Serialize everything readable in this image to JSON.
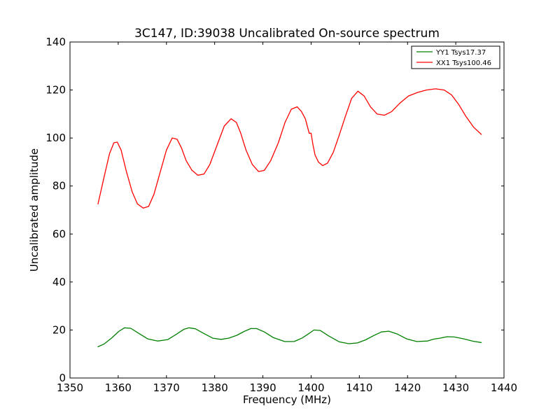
{
  "chart_data": {
    "type": "line",
    "title": "3C147, ID:39038 Uncalibrated On-source spectrum",
    "xlabel": "Frequency (MHz)",
    "ylabel": "Uncalibrated amplitude",
    "xlim": [
      1350,
      1440
    ],
    "ylim": [
      0,
      140
    ],
    "xticks": [
      1350,
      1360,
      1370,
      1380,
      1390,
      1400,
      1410,
      1420,
      1430,
      1440
    ],
    "yticks": [
      0,
      20,
      40,
      60,
      80,
      100,
      120,
      140
    ],
    "grid": false,
    "legend_position": "top-right",
    "series": [
      {
        "name": "YY1 Tsys17.37",
        "color": "#008000",
        "x": [
          1355.8,
          1357.1,
          1358.6,
          1360.1,
          1361.3,
          1362.6,
          1364.2,
          1366.1,
          1368.2,
          1370.3,
          1372.2,
          1373.6,
          1374.7,
          1376.0,
          1377.7,
          1379.6,
          1381.3,
          1382.9,
          1384.6,
          1386.1,
          1387.5,
          1388.7,
          1390.3,
          1392.2,
          1394.5,
          1396.5,
          1398.2,
          1399.6,
          1400.6,
          1401.9,
          1403.6,
          1405.8,
          1407.8,
          1409.6,
          1411.3,
          1413.0,
          1414.6,
          1416.1,
          1417.9,
          1419.8,
          1421.9,
          1424.1,
          1425.4,
          1426.7,
          1428.2,
          1429.7,
          1431.7,
          1433.6,
          1435.3
        ],
        "y": [
          13.0,
          14.2,
          16.6,
          19.4,
          20.9,
          20.7,
          18.7,
          16.3,
          15.4,
          16.0,
          18.4,
          20.3,
          20.9,
          20.5,
          18.6,
          16.6,
          16.1,
          16.6,
          17.8,
          19.4,
          20.6,
          20.6,
          19.2,
          16.8,
          15.2,
          15.2,
          16.7,
          18.6,
          20.0,
          19.8,
          17.6,
          15.1,
          14.3,
          14.6,
          15.9,
          17.7,
          19.2,
          19.5,
          18.3,
          16.3,
          15.2,
          15.4,
          16.2,
          16.6,
          17.2,
          17.1,
          16.3,
          15.3,
          14.8
        ]
      },
      {
        "name": "XX1 Tsys100.46",
        "color": "#ff0000",
        "x": [
          1355.8,
          1357.1,
          1358.2,
          1359.1,
          1359.8,
          1360.6,
          1361.7,
          1362.9,
          1364.0,
          1365.2,
          1366.3,
          1367.4,
          1368.6,
          1370.0,
          1371.2,
          1372.2,
          1373.1,
          1374.1,
          1375.3,
          1376.5,
          1377.8,
          1379.0,
          1380.5,
          1382.0,
          1383.4,
          1384.5,
          1385.4,
          1386.5,
          1387.8,
          1389.1,
          1390.3,
          1391.6,
          1393.2,
          1394.6,
          1395.9,
          1397.1,
          1398.0,
          1398.8,
          1399.6,
          1400.0,
          1400.4,
          1400.8,
          1401.5,
          1402.4,
          1403.4,
          1404.6,
          1405.8,
          1407.1,
          1408.4,
          1409.7,
          1411.0,
          1412.3,
          1413.7,
          1415.2,
          1416.7,
          1418.4,
          1420.2,
          1422.1,
          1423.9,
          1425.8,
          1427.6,
          1429.1,
          1430.6,
          1432.1,
          1433.7,
          1435.3
        ],
        "y": [
          72.5,
          84.0,
          93.5,
          98.0,
          98.3,
          95.0,
          86.0,
          77.5,
          72.5,
          70.8,
          71.5,
          76.5,
          85.0,
          95.0,
          100.0,
          99.5,
          96.0,
          90.5,
          86.5,
          84.5,
          85.0,
          89.0,
          97.0,
          105.0,
          108.0,
          106.5,
          102.0,
          95.0,
          89.0,
          86.0,
          86.5,
          90.5,
          98.0,
          106.5,
          112.0,
          113.0,
          111.0,
          108.0,
          102.0,
          102.0,
          97.0,
          93.0,
          90.0,
          88.5,
          89.5,
          94.0,
          101.0,
          109.0,
          116.5,
          119.5,
          117.5,
          113.0,
          110.0,
          109.5,
          111.0,
          114.5,
          117.5,
          119.0,
          120.0,
          120.5,
          120.0,
          118.0,
          114.0,
          109.0,
          104.5,
          101.5
        ]
      }
    ]
  }
}
